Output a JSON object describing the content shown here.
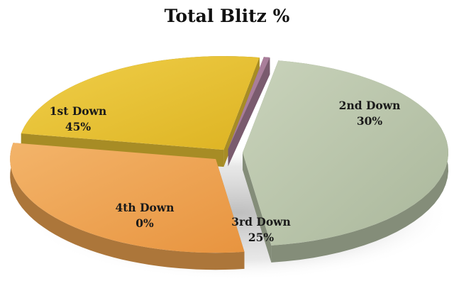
{
  "chart_data": {
    "type": "pie",
    "style": "3d-exploded",
    "title": "Total Blitz %",
    "categories": [
      "1st Down",
      "2nd Down",
      "3rd Down",
      "4th Down"
    ],
    "values": [
      45,
      30,
      25,
      0
    ],
    "value_labels": [
      "45%",
      "30%",
      "25%",
      "0%"
    ],
    "colors": [
      "#b8c4a8",
      "#efa450",
      "#e8c234",
      "#a97e99"
    ],
    "legend": "none"
  }
}
